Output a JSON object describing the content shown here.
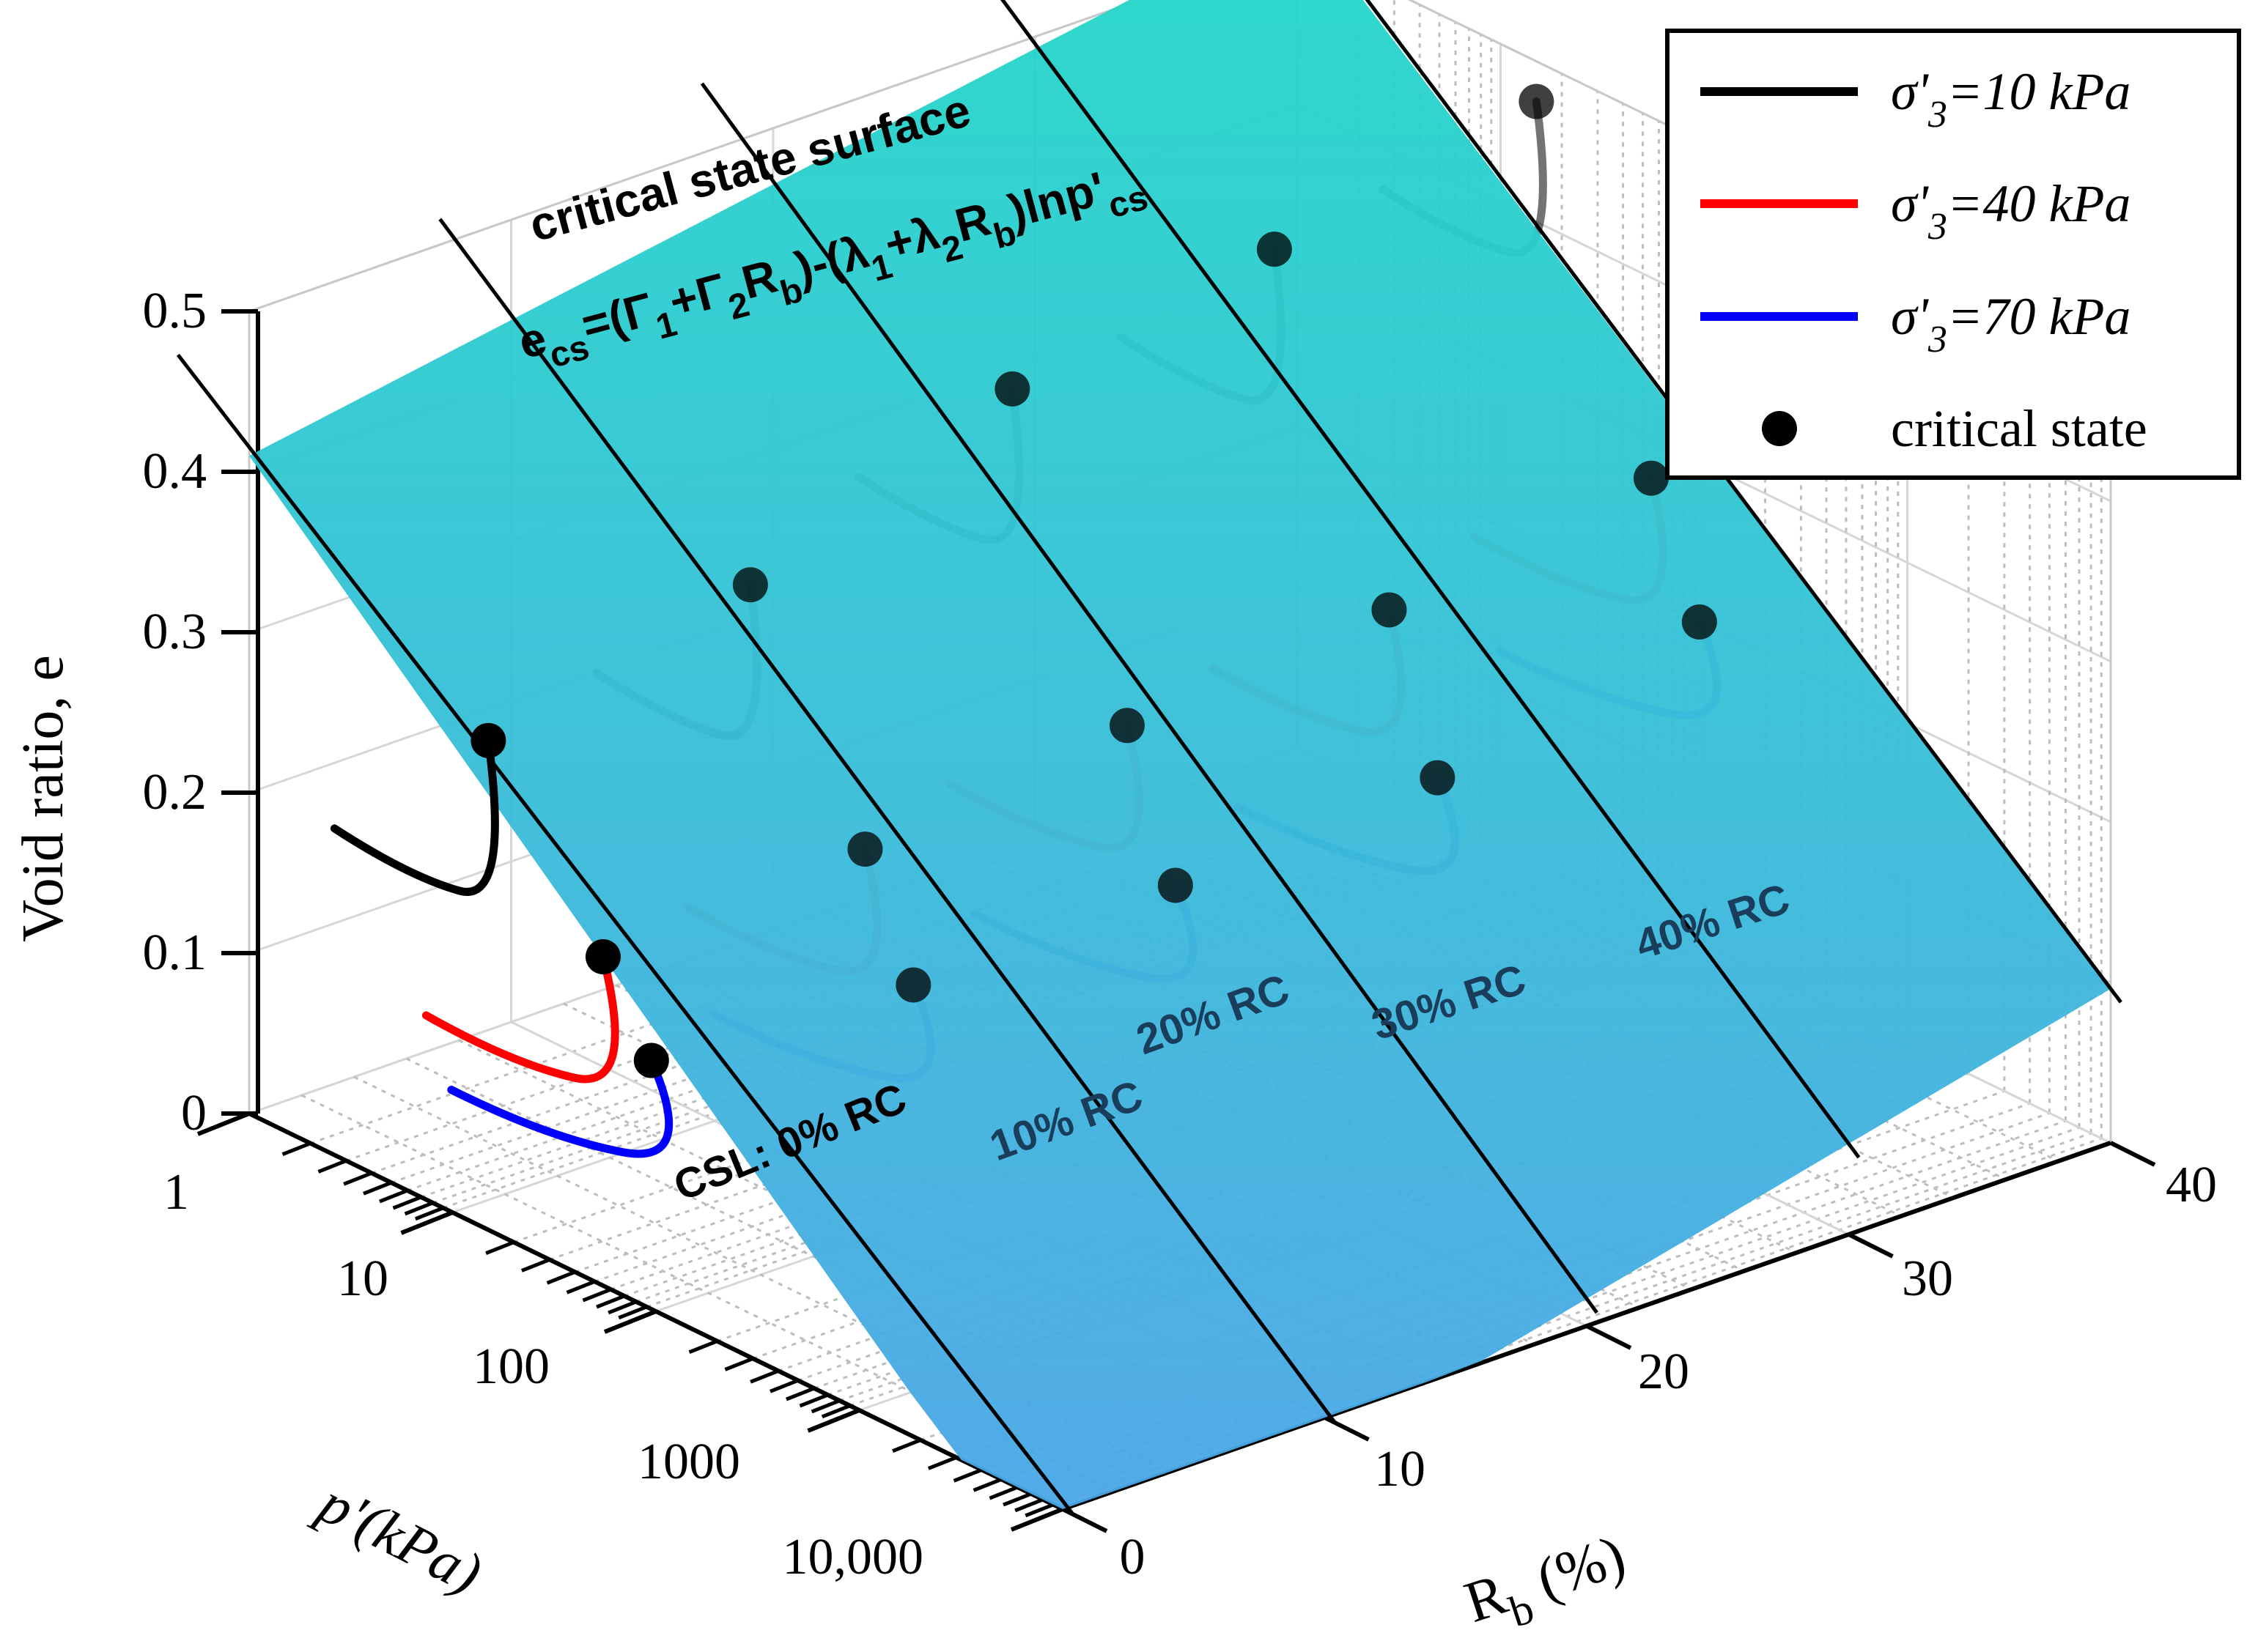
{
  "chart_data": {
    "type": "surface3d",
    "title": "critical state surface",
    "equation": {
      "e_main": "e",
      "e_sub": "cs",
      "rhs_parts": [
        {
          "t": "=(Γ",
          "sub": "1"
        },
        {
          "t": "+Γ",
          "sub": "2"
        },
        {
          "t": "R",
          "sub": "b"
        },
        {
          "t": ")-(λ",
          "sub": "1"
        },
        {
          "t": "+λ",
          "sub": "2"
        },
        {
          "t": "R",
          "sub": "b"
        },
        {
          "t": ")lnp'",
          "sub": "cs"
        }
      ]
    },
    "xlabel": "p'(kPa)",
    "x_scale": "log",
    "x_ticks": [
      "1",
      "10",
      "100",
      "1000",
      "10,000"
    ],
    "x_tick_values": [
      1,
      10,
      100,
      1000,
      10000
    ],
    "ylabel_main": "R",
    "ylabel_sub": "b",
    "ylabel_tail": " (%)",
    "y_ticks": [
      "0",
      "10",
      "20",
      "30",
      "40"
    ],
    "y_tick_values": [
      0,
      10,
      20,
      30,
      40
    ],
    "zlabel": "Void ratio, e",
    "z_ticks": [
      "0",
      "0.1",
      "0.2",
      "0.3",
      "0.4",
      "0.5"
    ],
    "z_tick_values": [
      0,
      0.1,
      0.2,
      0.3,
      0.4,
      0.5
    ],
    "csl_labels": [
      "CSL: 0% RC",
      "10% RC",
      "20% RC",
      "30% RC",
      "40% RC"
    ],
    "rc_values": [
      0,
      10,
      20,
      30,
      40
    ],
    "critical_state_points": [
      {
        "rc": 0,
        "e": [
          0.305,
          0.205,
          0.155
        ]
      },
      {
        "rc": 10,
        "e": [
          0.345,
          0.215,
          0.145
        ]
      },
      {
        "rc": 20,
        "e": [
          0.41,
          0.235,
          0.15
        ]
      },
      {
        "rc": 30,
        "e": [
          0.44,
          0.25,
          0.16
        ]
      },
      {
        "rc": 40,
        "e": [
          0.475,
          0.275,
          0.2
        ]
      }
    ],
    "legend": [
      {
        "pre": "σ'",
        "sub": "3",
        "post": "=10 kPa",
        "color": "#000000",
        "kind": "line"
      },
      {
        "pre": "σ'",
        "sub": "3",
        "post": "=40 kPa",
        "color": "#ff0000",
        "kind": "line"
      },
      {
        "pre": "σ'",
        "sub": "3",
        "post": "=70 kPa",
        "color": "#0000ff",
        "kind": "line"
      },
      {
        "pre": "critical state",
        "sub": "",
        "post": "",
        "color": "#000000",
        "kind": "marker"
      }
    ],
    "legend_position": "top-right",
    "surface_colors": [
      "#22d8c8",
      "#4aa6e6"
    ],
    "rc_label_color": "#1a3d5c"
  }
}
